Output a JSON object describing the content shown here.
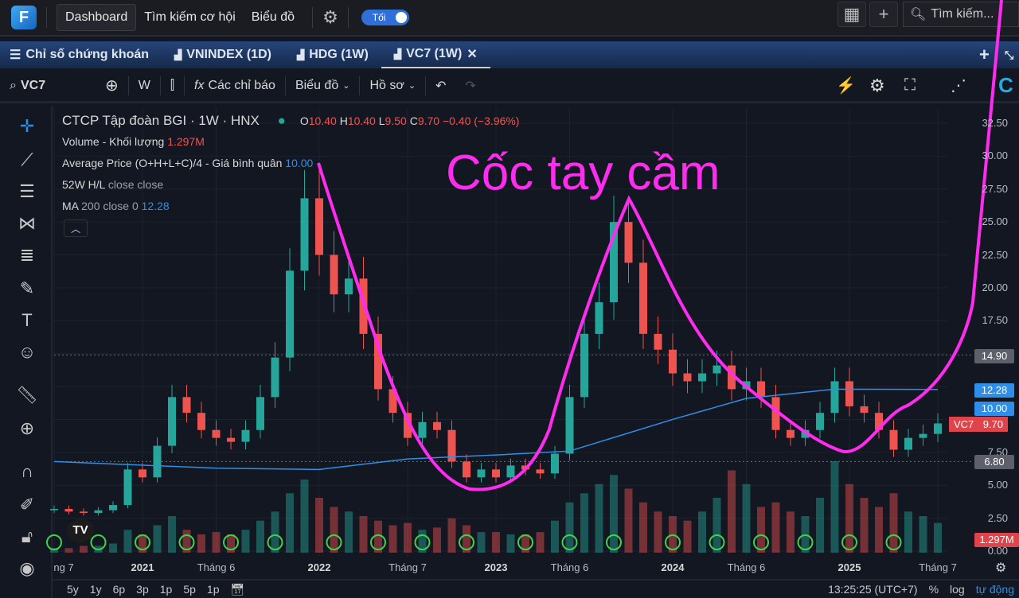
{
  "topbar": {
    "nav": [
      "Dashboard",
      "Tìm kiếm cơ hội",
      "Biểu đồ"
    ],
    "theme_toggle": "Tối",
    "search_placeholder": "Tìm kiếm..."
  },
  "tabs": [
    {
      "label": "Chỉ số chứng khoán",
      "icon": "menu-icon"
    },
    {
      "label": "VNINDEX (1D)",
      "icon": "chart-icon"
    },
    {
      "label": "HDG (1W)",
      "icon": "chart-icon"
    },
    {
      "label": "VC7 (1W)",
      "icon": "chart-icon",
      "active": true
    }
  ],
  "toolbar": {
    "symbol": "VC7",
    "interval": "W",
    "indicators": "Các chỉ báo",
    "chart": "Biểu đồ",
    "profile": "Hồ sơ"
  },
  "legend": {
    "title": "CTCP Tập đoàn BGI · 1W · HNX",
    "o_label": "O",
    "o": "10.40",
    "h_label": "H",
    "h": "10.40",
    "l_label": "L",
    "l": "9.50",
    "c_label": "C",
    "c": "9.70",
    "change": "−0.40 (−3.96%)",
    "volume_label": "Volume - Khối lượng",
    "volume": "1.297M",
    "avg_label": "Average Price (O+H+L+C)/4 - Giá bình quân",
    "avg": "10.00",
    "hl_label": "52W H/L",
    "hl_params": "close close",
    "ma_label": "MA",
    "ma_params": "200 close 0",
    "ma": "12.28"
  },
  "annotation": "Cốc tay cầm",
  "price_tags": {
    "high52": "14.90",
    "ma": "12.28",
    "avg": "10.00",
    "symbol": "VC7",
    "last": "9.70",
    "low52": "6.80",
    "volume": "1.297M"
  },
  "colors": {
    "up": "#26a69a",
    "down": "#ef5350",
    "ma": "#2f8fe8",
    "annotation": "#ff2cf0",
    "background": "#131722"
  },
  "x_labels": [
    {
      "t": "ng 7",
      "d": "2020-07",
      "b": false
    },
    {
      "t": "2021",
      "d": "2021-01",
      "b": true
    },
    {
      "t": "Tháng 6",
      "d": "2021-06",
      "b": false
    },
    {
      "t": "2022",
      "d": "2022-01",
      "b": true
    },
    {
      "t": "Tháng 7",
      "d": "2022-07",
      "b": false
    },
    {
      "t": "2023",
      "d": "2023-01",
      "b": true
    },
    {
      "t": "Tháng 6",
      "d": "2023-06",
      "b": false
    },
    {
      "t": "2024",
      "d": "2024-01",
      "b": true
    },
    {
      "t": "Tháng 6",
      "d": "2024-06",
      "b": false
    },
    {
      "t": "2025",
      "d": "2025-01",
      "b": true
    },
    {
      "t": "Tháng 7",
      "d": "2025-07",
      "b": false
    }
  ],
  "bottombar": {
    "ranges": [
      "5y",
      "1y",
      "6p",
      "3p",
      "1p",
      "5p",
      "1p"
    ],
    "time": "13:25:25 (UTC+7)",
    "percent": "%",
    "log": "log",
    "auto": "tự động"
  },
  "chart_data": {
    "type": "candlestick",
    "y_ticks": [
      "32.50",
      "30.00",
      "27.50",
      "25.00",
      "22.50",
      "20.00",
      "17.50",
      "7.50",
      "5.00",
      "2.50",
      "0.00"
    ],
    "ylim": [
      0,
      32.5
    ],
    "closes": [
      [
        "2020-07",
        3.2
      ],
      [
        "2020-08",
        3.0
      ],
      [
        "2020-09",
        2.9
      ],
      [
        "2020-10",
        3.1
      ],
      [
        "2020-11",
        3.5
      ],
      [
        "2020-12",
        6.2
      ],
      [
        "2021-01",
        5.6
      ],
      [
        "2021-02",
        8.0
      ],
      [
        "2021-03",
        11.7
      ],
      [
        "2021-04",
        10.5
      ],
      [
        "2021-05",
        9.2
      ],
      [
        "2021-06",
        8.6
      ],
      [
        "2021-07",
        8.3
      ],
      [
        "2021-08",
        9.2
      ],
      [
        "2021-09",
        11.7
      ],
      [
        "2021-10",
        14.7
      ],
      [
        "2021-11",
        21.3
      ],
      [
        "2021-12",
        26.8
      ],
      [
        "2022-01",
        22.5
      ],
      [
        "2022-02",
        19.5
      ],
      [
        "2022-03",
        20.7
      ],
      [
        "2022-04",
        16.5
      ],
      [
        "2022-05",
        12.3
      ],
      [
        "2022-06",
        10.5
      ],
      [
        "2022-07",
        8.6
      ],
      [
        "2022-08",
        9.8
      ],
      [
        "2022-09",
        9.2
      ],
      [
        "2022-10",
        6.8
      ],
      [
        "2022-11",
        5.6
      ],
      [
        "2022-12",
        6.2
      ],
      [
        "2023-01",
        5.6
      ],
      [
        "2023-02",
        6.5
      ],
      [
        "2023-03",
        6.2
      ],
      [
        "2023-04",
        5.9
      ],
      [
        "2023-05",
        7.4
      ],
      [
        "2023-06",
        11.7
      ],
      [
        "2023-07",
        16.5
      ],
      [
        "2023-08",
        18.9
      ],
      [
        "2023-09",
        25.0
      ],
      [
        "2023-10",
        21.9
      ],
      [
        "2023-11",
        16.5
      ],
      [
        "2023-12",
        15.3
      ],
      [
        "2024-01",
        13.5
      ],
      [
        "2024-02",
        12.9
      ],
      [
        "2024-03",
        13.5
      ],
      [
        "2024-04",
        14.1
      ],
      [
        "2024-05",
        12.3
      ],
      [
        "2024-06",
        12.9
      ],
      [
        "2024-07",
        11.7
      ],
      [
        "2024-08",
        9.2
      ],
      [
        "2024-09",
        8.6
      ],
      [
        "2024-10",
        9.2
      ],
      [
        "2024-11",
        10.5
      ],
      [
        "2024-12",
        12.9
      ],
      [
        "2025-01",
        11.0
      ],
      [
        "2025-02",
        10.5
      ],
      [
        "2025-03",
        9.2
      ],
      [
        "2025-04",
        7.7
      ],
      [
        "2025-05",
        8.6
      ],
      [
        "2025-06",
        8.9
      ],
      [
        "2025-07",
        9.7
      ]
    ],
    "ma200": [
      [
        "2020-07",
        6.8
      ],
      [
        "2021-06",
        6.3
      ],
      [
        "2022-01",
        6.2
      ],
      [
        "2022-07",
        7.0
      ],
      [
        "2023-01",
        7.3
      ],
      [
        "2023-06",
        7.6
      ],
      [
        "2024-01",
        10.0
      ],
      [
        "2024-06",
        11.6
      ],
      [
        "2024-12",
        12.3
      ],
      [
        "2025-07",
        12.28
      ]
    ],
    "volume_m": [
      0.2,
      0.2,
      0.3,
      0.3,
      0.4,
      1.0,
      0.8,
      1.2,
      1.6,
      1.0,
      0.8,
      0.9,
      0.8,
      1.0,
      1.4,
      1.8,
      2.6,
      3.2,
      2.4,
      2.0,
      1.8,
      1.6,
      1.4,
      1.2,
      1.3,
      1.0,
      1.1,
      1.5,
      1.2,
      0.9,
      0.9,
      0.8,
      0.8,
      0.9,
      1.4,
      2.2,
      2.6,
      3.0,
      3.4,
      2.8,
      2.2,
      1.8,
      1.6,
      1.4,
      1.8,
      2.4,
      3.6,
      3.0,
      2.0,
      2.2,
      1.8,
      1.6,
      2.4,
      4.0,
      3.0,
      2.4,
      2.0,
      2.6,
      1.8,
      1.6,
      1.3
    ],
    "reference_lines": [
      14.9,
      6.8
    ]
  }
}
